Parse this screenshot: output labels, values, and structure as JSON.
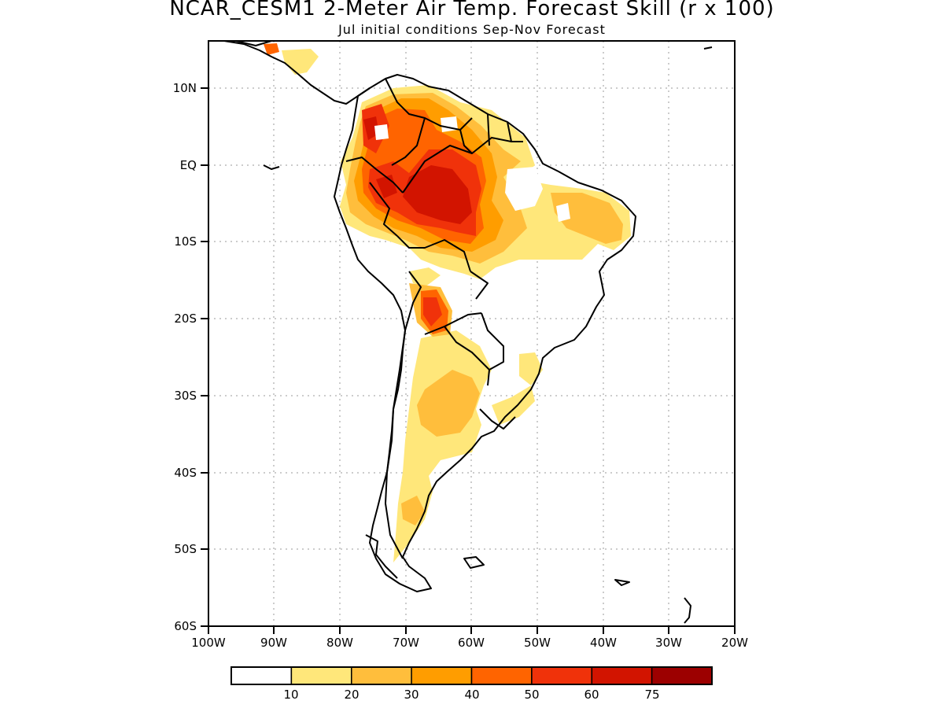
{
  "title": "NCAR_CESM1 2-Meter Air Temp. Forecast Skill (r x 100)",
  "subtitle": "Jul initial conditions   Sep-Nov Forecast",
  "map": {
    "lon_range": [
      -100,
      -20
    ],
    "lat_range": [
      -60,
      15
    ],
    "gridlines": "dotted",
    "lat_labels": [
      "10N",
      "EQ",
      "10S",
      "20S",
      "30S",
      "40S",
      "50S",
      "60S"
    ],
    "lon_labels": [
      "100W",
      "90W",
      "80W",
      "70W",
      "60W",
      "50W",
      "40W",
      "30W",
      "20W"
    ]
  },
  "legend": {
    "labels": [
      "10",
      "20",
      "30",
      "40",
      "50",
      "60",
      "75"
    ],
    "colors": [
      "#ffffff",
      "#ffe77a",
      "#ffbe3c",
      "#ff9d00",
      "#ff6400",
      "#f0320a",
      "#d21400",
      "#9c0000"
    ]
  }
}
